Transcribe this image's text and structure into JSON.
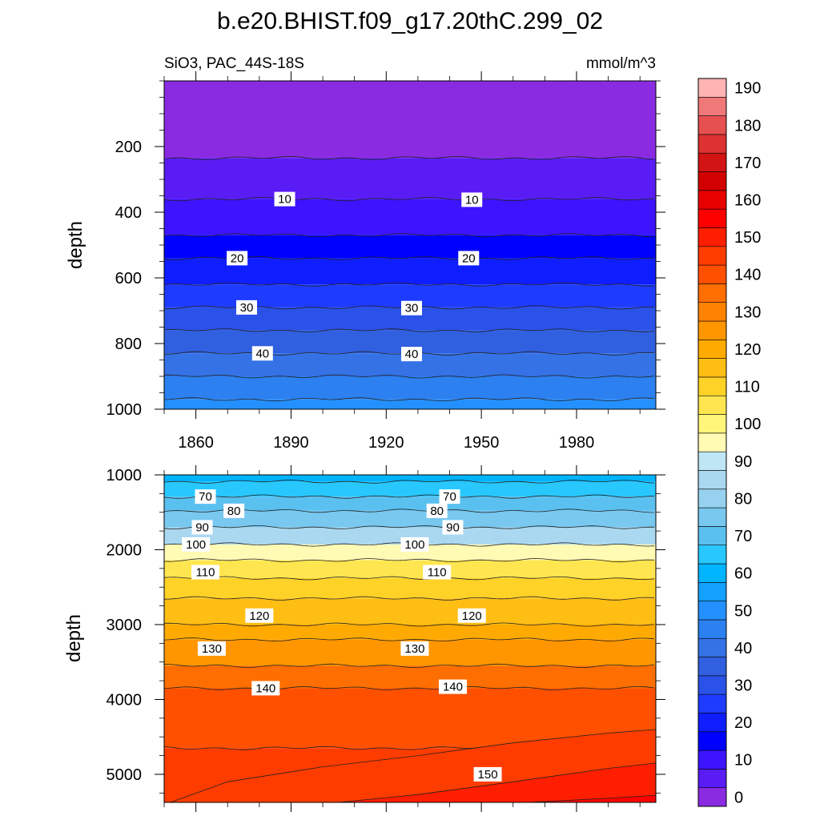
{
  "title": "b.e20.BHIST.f09_g17.20thC.299_02",
  "subtitle_left": "SiO3, PAC_44S-18S",
  "subtitle_right": "mmol/m^3",
  "chart_data": [
    {
      "type": "heatmap",
      "panel": "upper",
      "ylabel": "depth",
      "xlim": [
        1850,
        2005
      ],
      "ylim": [
        0,
        1000
      ],
      "y_inverted": true,
      "x_ticks": [
        1860,
        1890,
        1920,
        1950,
        1980
      ],
      "y_ticks": [
        200,
        400,
        600,
        800,
        1000
      ],
      "x_tick_labels": [
        "1860",
        "1890",
        "1920",
        "1950",
        "1980"
      ],
      "y_tick_labels": [
        "200",
        "400",
        "600",
        "800",
        "1000"
      ],
      "bands": [
        {
          "depth_start": 0,
          "depth_end": 235,
          "value": 0
        },
        {
          "depth_start": 235,
          "depth_end": 360,
          "value": 5
        },
        {
          "depth_start": 360,
          "depth_end": 470,
          "value": 10
        },
        {
          "depth_start": 470,
          "depth_end": 540,
          "value": 15
        },
        {
          "depth_start": 540,
          "depth_end": 620,
          "value": 20
        },
        {
          "depth_start": 620,
          "depth_end": 690,
          "value": 25
        },
        {
          "depth_start": 690,
          "depth_end": 760,
          "value": 30
        },
        {
          "depth_start": 760,
          "depth_end": 830,
          "value": 35
        },
        {
          "depth_start": 830,
          "depth_end": 900,
          "value": 40
        },
        {
          "depth_start": 900,
          "depth_end": 970,
          "value": 45
        },
        {
          "depth_start": 970,
          "depth_end": 1000,
          "value": 50
        }
      ],
      "contour_labels": [
        {
          "text": "10",
          "x": 1888,
          "depth": 360
        },
        {
          "text": "10",
          "x": 1947,
          "depth": 362
        },
        {
          "text": "20",
          "x": 1873,
          "depth": 540
        },
        {
          "text": "20",
          "x": 1946,
          "depth": 540
        },
        {
          "text": "30",
          "x": 1876,
          "depth": 690
        },
        {
          "text": "30",
          "x": 1928,
          "depth": 692
        },
        {
          "text": "40",
          "x": 1881,
          "depth": 830
        },
        {
          "text": "40",
          "x": 1928,
          "depth": 832
        }
      ]
    },
    {
      "type": "heatmap",
      "panel": "lower",
      "ylabel": "depth",
      "xlim": [
        1850,
        2005
      ],
      "ylim": [
        1000,
        5375
      ],
      "y_inverted": true,
      "x_ticks": [
        1860,
        1890,
        1920,
        1950,
        1980
      ],
      "y_ticks": [
        1000,
        2000,
        3000,
        4000,
        5000
      ],
      "y_tick_labels": [
        "1000",
        "2000",
        "3000",
        "4000",
        "5000"
      ],
      "bands": [
        {
          "depth_start": 1000,
          "depth_end": 1090,
          "value": 60
        },
        {
          "depth_start": 1090,
          "depth_end": 1290,
          "value": 65
        },
        {
          "depth_start": 1290,
          "depth_end": 1480,
          "value": 70
        },
        {
          "depth_start": 1480,
          "depth_end": 1700,
          "value": 75
        },
        {
          "depth_start": 1700,
          "depth_end": 1930,
          "value": 85
        },
        {
          "depth_start": 1930,
          "depth_end": 2140,
          "value": 95
        },
        {
          "depth_start": 2140,
          "depth_end": 2380,
          "value": 105
        },
        {
          "depth_start": 2380,
          "depth_end": 2650,
          "value": 110
        },
        {
          "depth_start": 2650,
          "depth_end": 3000,
          "value": 115
        },
        {
          "depth_start": 3000,
          "depth_end": 3200,
          "value": 120
        },
        {
          "depth_start": 3200,
          "depth_end": 3550,
          "value": 125
        },
        {
          "depth_start": 3550,
          "depth_end": 3850,
          "value": 135
        },
        {
          "depth_start": 3850,
          "depth_end": 4650,
          "value": 140
        },
        {
          "depth_start": 4650,
          "depth_end": 5375,
          "value": 145
        }
      ],
      "sloped_contours": [
        {
          "value": 145,
          "x": [
            1852,
            1870,
            1900,
            1930,
            1960,
            1990,
            2005
          ],
          "depth": [
            5375,
            5100,
            4900,
            4750,
            4580,
            4450,
            4400
          ]
        },
        {
          "value": 150,
          "x": [
            1905,
            1930,
            1960,
            1990,
            2005
          ],
          "depth": [
            5375,
            5270,
            5100,
            4920,
            4850
          ]
        },
        {
          "value": 155,
          "x": [
            1965,
            1990,
            2005
          ],
          "depth": [
            5375,
            5320,
            5280
          ]
        }
      ],
      "contour_labels": [
        {
          "text": "70",
          "x": 1863,
          "depth": 1290
        },
        {
          "text": "70",
          "x": 1940,
          "depth": 1290
        },
        {
          "text": "80",
          "x": 1872,
          "depth": 1480
        },
        {
          "text": "80",
          "x": 1936,
          "depth": 1480
        },
        {
          "text": "90",
          "x": 1862,
          "depth": 1700
        },
        {
          "text": "90",
          "x": 1941,
          "depth": 1700
        },
        {
          "text": "100",
          "x": 1860,
          "depth": 1930
        },
        {
          "text": "100",
          "x": 1929,
          "depth": 1930
        },
        {
          "text": "110",
          "x": 1863,
          "depth": 2300
        },
        {
          "text": "110",
          "x": 1936,
          "depth": 2300
        },
        {
          "text": "120",
          "x": 1880,
          "depth": 2880
        },
        {
          "text": "120",
          "x": 1947,
          "depth": 2880
        },
        {
          "text": "130",
          "x": 1865,
          "depth": 3320
        },
        {
          "text": "130",
          "x": 1929,
          "depth": 3320
        },
        {
          "text": "140",
          "x": 1882,
          "depth": 3850
        },
        {
          "text": "140",
          "x": 1941,
          "depth": 3830
        },
        {
          "text": "150",
          "x": 1952,
          "depth": 5000
        }
      ]
    },
    {
      "type": "colorbar",
      "tick_labels": [
        "0",
        "10",
        "20",
        "30",
        "40",
        "50",
        "60",
        "70",
        "80",
        "90",
        "100",
        "110",
        "120",
        "130",
        "140",
        "150",
        "160",
        "170",
        "180",
        "190"
      ],
      "levels": [
        0,
        5,
        10,
        15,
        20,
        25,
        30,
        35,
        40,
        45,
        50,
        55,
        60,
        65,
        70,
        75,
        80,
        85,
        90,
        95,
        100,
        105,
        110,
        115,
        120,
        125,
        130,
        135,
        140,
        145,
        150,
        155,
        160,
        165,
        170,
        175,
        180,
        185,
        190,
        195
      ],
      "colors": [
        "#8a2be2",
        "#5a1cf5",
        "#3c14ff",
        "#0000ff",
        "#0f1eff",
        "#1e3cff",
        "#2a52e8",
        "#3060e0",
        "#3472e6",
        "#2c80f0",
        "#2490ff",
        "#14a0ff",
        "#00b4ff",
        "#28c8ff",
        "#5ac0f0",
        "#78c8f0",
        "#96d2f0",
        "#aad8f0",
        "#bee6f5",
        "#fffab4",
        "#fff578",
        "#ffe650",
        "#ffd228",
        "#ffbe14",
        "#ffaa00",
        "#ff9600",
        "#ff8200",
        "#ff6e00",
        "#ff5000",
        "#ff3c00",
        "#ff1e00",
        "#ff0000",
        "#e60000",
        "#d20000",
        "#d21414",
        "#dc3232",
        "#e65050",
        "#f07878",
        "#ffb4b4"
      ]
    }
  ]
}
